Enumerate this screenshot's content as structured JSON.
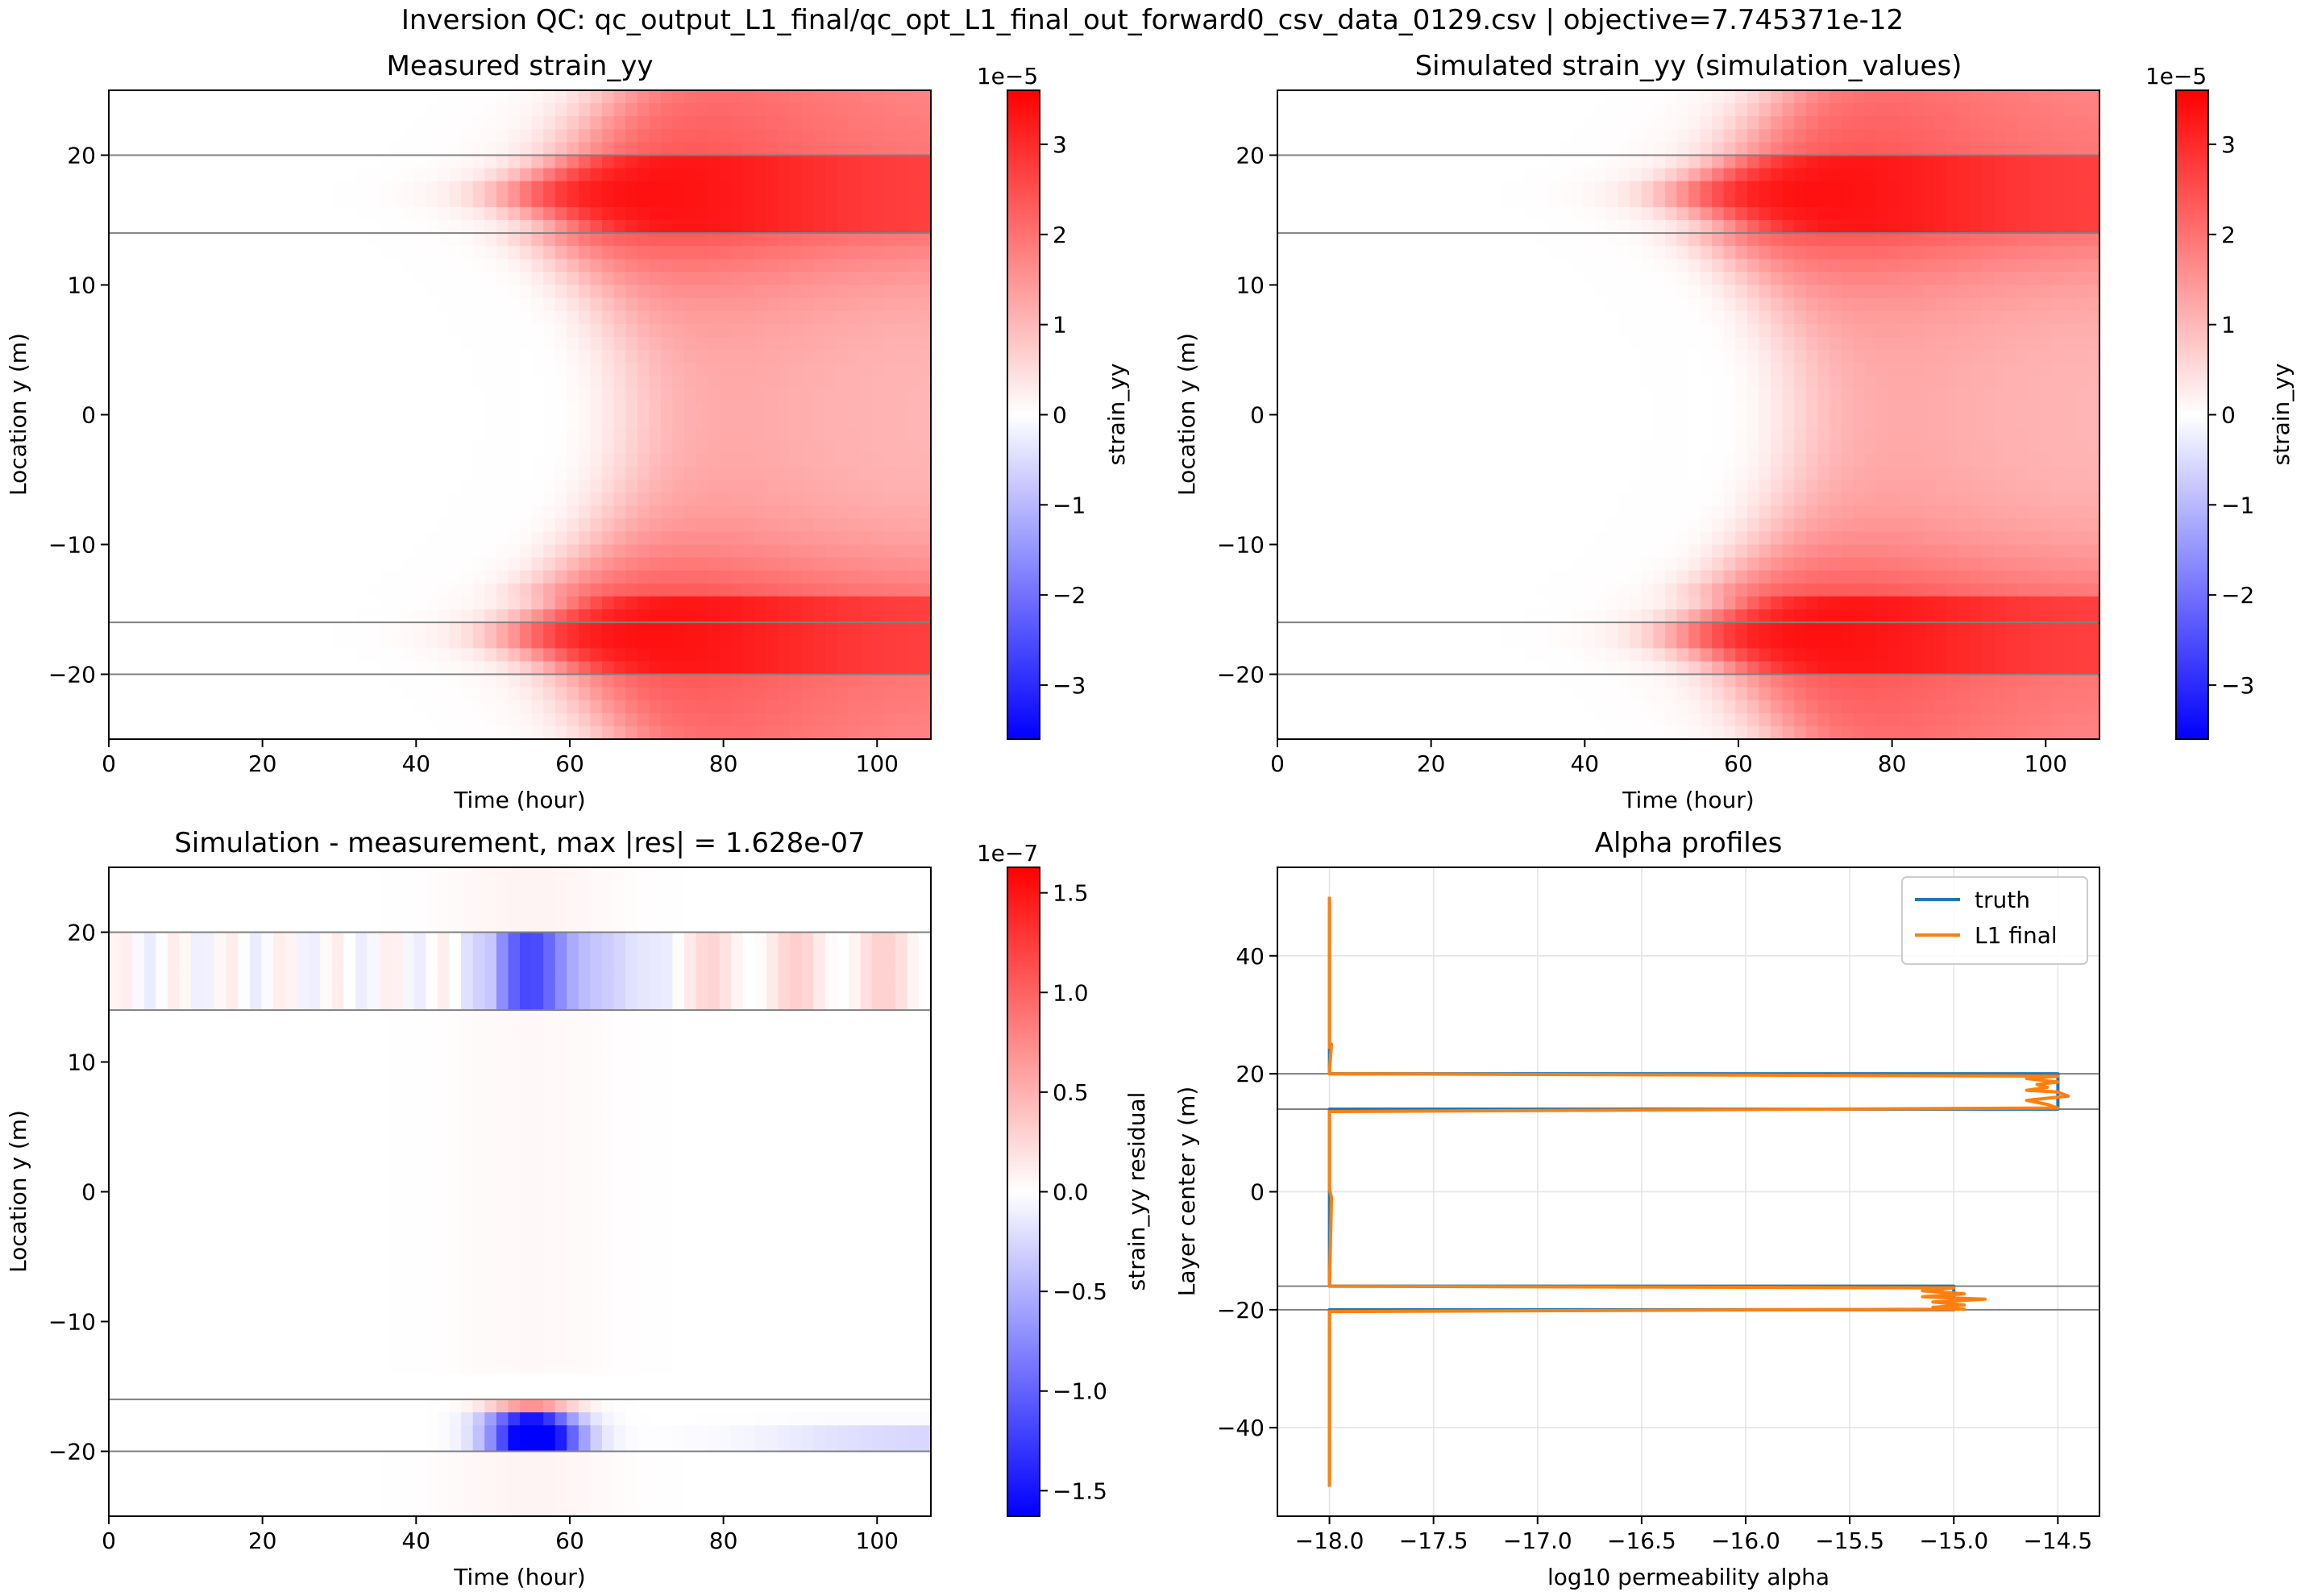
{
  "suptitle": "Inversion QC: qc_output_L1_final/qc_opt_L1_final_out_forward0_csv_data_0129.csv | objective=7.745371e-12",
  "colors": {
    "neg": "#0000ff",
    "pos": "#ff0000",
    "layer_line": "#808080",
    "truth": "#1f77b4",
    "l1_final": "#ff7f0e"
  },
  "chart_data": [
    {
      "type": "heatmap",
      "title": "Measured strain_yy",
      "xlabel": "Time (hour)",
      "ylabel": "Location y (m)",
      "xlim": [
        0,
        107
      ],
      "ylim": [
        -25,
        25
      ],
      "xticks": [
        "0",
        "20",
        "40",
        "60",
        "80",
        "100"
      ],
      "yticks": [
        "−20",
        "−10",
        "0",
        "10",
        "20"
      ],
      "colormap": "bwr",
      "colorbar": {
        "label": "strain_yy",
        "multiplier": "1e−5",
        "range": [
          -3.6,
          3.6
        ],
        "ticks": [
          "−3",
          "−2",
          "−1",
          "0",
          "1",
          "2",
          "3"
        ]
      },
      "layer_boundaries_y": [
        20,
        14,
        -16,
        -20
      ],
      "field": "Negative near zero before ~50 h; positive front arrives near 50–55 h at y≈±17 and ~65 h at y=0; peak ≈3.5e−5 at y≈±18, t≈75–80 h; interior ≈1.3e−5 late."
    },
    {
      "type": "heatmap",
      "title": "Simulated strain_yy (simulation_values)",
      "xlabel": "Time (hour)",
      "ylabel": "Location y (m)",
      "xlim": [
        0,
        107
      ],
      "ylim": [
        -25,
        25
      ],
      "xticks": [
        "0",
        "20",
        "40",
        "60",
        "80",
        "100"
      ],
      "yticks": [
        "−20",
        "−10",
        "0",
        "10",
        "20"
      ],
      "colormap": "bwr",
      "colorbar": {
        "label": "strain_yy",
        "multiplier": "1e−5",
        "range": [
          -3.6,
          3.6
        ],
        "ticks": [
          "−3",
          "−2",
          "−1",
          "0",
          "1",
          "2",
          "3"
        ]
      },
      "layer_boundaries_y": [
        20,
        14,
        -16,
        -20
      ],
      "field": "Visually identical to the measured field."
    },
    {
      "type": "heatmap",
      "title": "Simulation - measurement, max |res| = 1.628e-07",
      "xlabel": "Time (hour)",
      "ylabel": "Location y (m)",
      "xlim": [
        0,
        107
      ],
      "ylim": [
        -25,
        25
      ],
      "xticks": [
        "0",
        "20",
        "40",
        "60",
        "80",
        "100"
      ],
      "yticks": [
        "−20",
        "−10",
        "0",
        "10",
        "20"
      ],
      "colormap": "bwr",
      "colorbar": {
        "label": "strain_yy residual",
        "multiplier": "1e−7",
        "range": [
          -1.628,
          1.628
        ],
        "ticks": [
          "−1.5",
          "−1.0",
          "−0.5",
          "0.0",
          "0.5",
          "1.0",
          "1.5"
        ]
      },
      "layer_boundaries_y": [
        20,
        14,
        -16,
        -20
      ],
      "field": "Residual concentrated inside the two high-permeability layers after ~50 h; strongest negative bands at t≈50–57 h, y≈15,17,19 and y≈−17,−19; positive stripes t≈80–107 h in upper layer."
    },
    {
      "type": "line",
      "title": "Alpha profiles",
      "xlabel": "log10 permeability alpha",
      "ylabel": "Layer center y (m)",
      "xlim": [
        -18.25,
        -14.3
      ],
      "ylim": [
        -55,
        55
      ],
      "xticks": [
        "−18.0",
        "−17.5",
        "−17.0",
        "−16.5",
        "−16.0",
        "−15.5",
        "−15.0",
        "−14.5"
      ],
      "yticks": [
        "−40",
        "−20",
        "0",
        "20",
        "40"
      ],
      "grid": true,
      "legend": "top-right",
      "layer_boundaries_y": [
        20,
        14,
        -16,
        -20
      ],
      "series": [
        {
          "name": "truth",
          "points": [
            [
              -18,
              50
            ],
            [
              -18,
              20
            ],
            [
              -14.5,
              20
            ],
            [
              -14.5,
              14
            ],
            [
              -18,
              14
            ],
            [
              -18,
              -16
            ],
            [
              -15,
              -16
            ],
            [
              -15,
              -20
            ],
            [
              -18,
              -20
            ],
            [
              -18,
              -50
            ]
          ]
        },
        {
          "name": "L1 final",
          "points": [
            [
              -18,
              50
            ],
            [
              -18,
              24.5
            ],
            [
              -17.99,
              25
            ],
            [
              -18,
              20.5
            ],
            [
              -18,
              20
            ],
            [
              -14.5,
              19.6
            ],
            [
              -14.65,
              19.2
            ],
            [
              -14.5,
              18.6
            ],
            [
              -14.6,
              18.2
            ],
            [
              -14.55,
              17.7
            ],
            [
              -14.65,
              17.2
            ],
            [
              -14.5,
              16.9
            ],
            [
              -14.45,
              16.2
            ],
            [
              -14.65,
              15.5
            ],
            [
              -14.55,
              14.8
            ],
            [
              -14.5,
              14.2
            ],
            [
              -18,
              13.6
            ],
            [
              -18,
              0.5
            ],
            [
              -17.99,
              -1
            ],
            [
              -18,
              -16
            ],
            [
              -15,
              -16.3
            ],
            [
              -15.15,
              -16.8
            ],
            [
              -14.95,
              -17.3
            ],
            [
              -15.15,
              -17.8
            ],
            [
              -14.85,
              -18.2
            ],
            [
              -15.1,
              -18.7
            ],
            [
              -14.95,
              -19.2
            ],
            [
              -15.1,
              -19.6
            ],
            [
              -14.95,
              -19.9
            ],
            [
              -18,
              -20.3
            ],
            [
              -18,
              -50
            ]
          ]
        }
      ]
    }
  ]
}
